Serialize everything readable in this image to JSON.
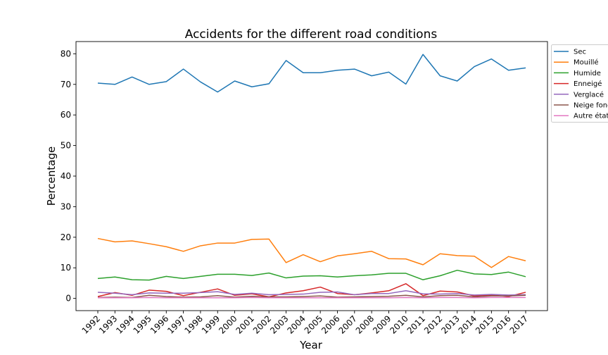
{
  "chart_data": {
    "type": "line",
    "title": "Accidents for the different road conditions",
    "xlabel": "Year",
    "ylabel": "Percentage",
    "ylim": [
      -4,
      84
    ],
    "yticks": [
      0,
      10,
      20,
      30,
      40,
      50,
      60,
      70,
      80
    ],
    "grid": false,
    "legend_position": "right",
    "x": [
      "1992",
      "1993",
      "1994",
      "1995",
      "1996",
      "1997",
      "1998",
      "1999",
      "2000",
      "2001",
      "2002",
      "2003",
      "2004",
      "2005",
      "2006",
      "2007",
      "2008",
      "2009",
      "2010",
      "2011",
      "2012",
      "2013",
      "2014",
      "2015",
      "2016",
      "2017"
    ],
    "series": [
      {
        "name": "Sec",
        "color": "#1f77b4",
        "values": [
          70.4,
          70.0,
          72.4,
          70.0,
          70.9,
          75.0,
          70.8,
          67.5,
          71.1,
          69.2,
          70.2,
          77.8,
          73.8,
          73.8,
          74.6,
          75.0,
          72.8,
          74.0,
          70.1,
          79.8,
          72.8,
          71.1,
          75.8,
          78.3,
          74.6,
          75.4
        ]
      },
      {
        "name": "Mouillé",
        "color": "#ff7f0e",
        "values": [
          19.6,
          18.5,
          18.8,
          17.9,
          16.9,
          15.4,
          17.2,
          18.1,
          18.1,
          19.3,
          19.4,
          11.7,
          14.3,
          12.0,
          13.9,
          14.6,
          15.4,
          13.0,
          12.9,
          11.0,
          14.6,
          14.0,
          13.8,
          10.1,
          13.7,
          12.3
        ]
      },
      {
        "name": "Humide",
        "color": "#2ca02c",
        "values": [
          6.5,
          7.0,
          6.1,
          6.0,
          7.2,
          6.5,
          7.2,
          7.9,
          7.9,
          7.5,
          8.3,
          6.7,
          7.3,
          7.4,
          7.0,
          7.4,
          7.7,
          8.2,
          8.2,
          6.1,
          7.4,
          9.2,
          8.0,
          7.8,
          8.6,
          7.1
        ]
      },
      {
        "name": "Enneigé",
        "color": "#d62728",
        "values": [
          0.6,
          1.9,
          1.0,
          2.7,
          2.3,
          0.9,
          2.0,
          3.1,
          1.0,
          1.5,
          0.5,
          1.8,
          2.5,
          3.7,
          1.6,
          1.2,
          1.8,
          2.5,
          4.8,
          0.9,
          2.4,
          2.1,
          0.8,
          1.1,
          0.6,
          2.0
        ]
      },
      {
        "name": "Verglacé",
        "color": "#9467bd",
        "values": [
          2.0,
          1.7,
          1.2,
          1.8,
          1.7,
          1.7,
          1.9,
          2.2,
          1.3,
          1.7,
          1.2,
          1.3,
          1.4,
          2.0,
          2.1,
          1.2,
          1.6,
          1.6,
          2.5,
          1.5,
          1.4,
          1.6,
          1.1,
          1.3,
          1.1,
          1.2
        ]
      },
      {
        "name": "Neige fondue",
        "color": "#8c564b",
        "values": [
          0.3,
          0.4,
          0.3,
          1.0,
          0.6,
          0.4,
          0.5,
          0.9,
          0.4,
          0.7,
          0.5,
          0.5,
          0.6,
          0.8,
          0.4,
          0.5,
          0.6,
          0.7,
          1.0,
          0.5,
          0.9,
          1.0,
          0.5,
          0.8,
          0.8,
          1.0
        ]
      },
      {
        "name": "Autre état",
        "color": "#e377c2",
        "values": [
          0.2,
          0.2,
          0.2,
          0.3,
          0.2,
          0.2,
          0.2,
          0.2,
          0.2,
          0.3,
          0.2,
          0.2,
          0.2,
          0.2,
          0.2,
          0.2,
          0.2,
          0.2,
          0.3,
          0.2,
          0.3,
          0.3,
          0.2,
          0.3,
          0.3,
          0.3
        ]
      }
    ]
  }
}
